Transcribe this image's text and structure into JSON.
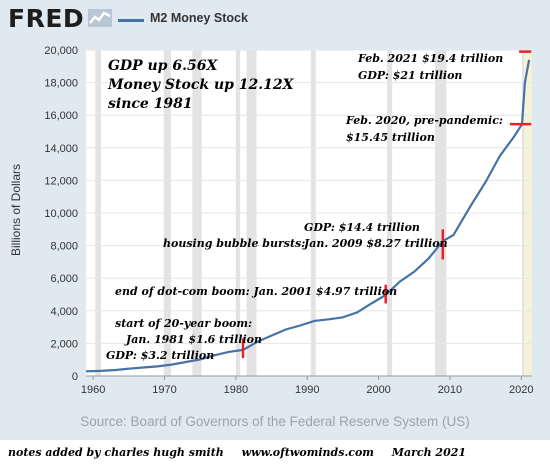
{
  "header": {
    "logo_text": "FRED",
    "logo_icon": "trend-graph-icon",
    "legend_label": "M2 Money Stock",
    "legend_color": "#4572a7"
  },
  "chart_data": {
    "type": "line",
    "ylabel": "Billions of Dollars",
    "ylim": [
      0,
      20000
    ],
    "yticks": [
      0,
      2000,
      4000,
      6000,
      8000,
      10000,
      12000,
      14000,
      16000,
      18000,
      20000
    ],
    "ytick_labels": [
      "0",
      "2,000",
      "4,000",
      "6,000",
      "8,000",
      "10,000",
      "12,000",
      "14,000",
      "16,000",
      "18,000",
      "20,000"
    ],
    "xlim": [
      1959,
      2021.5
    ],
    "xticks": [
      1960,
      1970,
      1980,
      1990,
      2000,
      2010,
      2020
    ],
    "xtick_labels": [
      "1960",
      "1970",
      "1980",
      "1990",
      "2000",
      "2010",
      "2020"
    ],
    "grid": true,
    "recession_shading": [
      [
        1960.3,
        1961.1
      ],
      [
        1969.9,
        1970.9
      ],
      [
        1973.9,
        1975.2
      ],
      [
        1980.0,
        1980.6
      ],
      [
        1981.5,
        1982.9
      ],
      [
        1990.5,
        1991.2
      ],
      [
        2001.2,
        2001.9
      ],
      [
        2007.9,
        2009.5
      ],
      [
        2020.1,
        2020.4
      ]
    ],
    "series": [
      {
        "name": "M2 Money Stock",
        "color": "#4572a7",
        "points": [
          [
            1959,
            290
          ],
          [
            1961,
            315
          ],
          [
            1963,
            365
          ],
          [
            1965,
            450
          ],
          [
            1967,
            520
          ],
          [
            1969,
            590
          ],
          [
            1971,
            700
          ],
          [
            1973,
            860
          ],
          [
            1975,
            1020
          ],
          [
            1977,
            1270
          ],
          [
            1979,
            1480
          ],
          [
            1981,
            1600
          ],
          [
            1983,
            2100
          ],
          [
            1985,
            2480
          ],
          [
            1987,
            2850
          ],
          [
            1989,
            3100
          ],
          [
            1991,
            3380
          ],
          [
            1993,
            3480
          ],
          [
            1995,
            3600
          ],
          [
            1997,
            3900
          ],
          [
            1999,
            4450
          ],
          [
            2001,
            4970
          ],
          [
            2003,
            5800
          ],
          [
            2005,
            6400
          ],
          [
            2007,
            7200
          ],
          [
            2009,
            8270
          ],
          [
            2010.5,
            8650
          ],
          [
            2011.5,
            9400
          ],
          [
            2013,
            10500
          ],
          [
            2015,
            11900
          ],
          [
            2017,
            13500
          ],
          [
            2019,
            14700
          ],
          [
            2020.1,
            15450
          ],
          [
            2020.5,
            18000
          ],
          [
            2021.1,
            19400
          ]
        ]
      }
    ],
    "markers": [
      {
        "x": 1981,
        "low": 1100,
        "high": 2300
      },
      {
        "x": 2001,
        "low": 4450,
        "high": 5600
      },
      {
        "x": 2009,
        "low": 7150,
        "high": 9000
      },
      {
        "x": 2018.4,
        "x2": 2021.4,
        "y": 15450
      },
      {
        "x": 2019.7,
        "x2": 2021.4,
        "y": 19900
      }
    ]
  },
  "annotations": {
    "headline_1": "GDP up 6.56X",
    "headline_2": "Money Stock up 12.12X",
    "headline_3": "since 1981",
    "feb2021": "Feb. 2021 $19.4 trillion",
    "gdp21": "GDP: $21 trillion",
    "feb2020_1": "Feb. 2020, pre-pandemic:",
    "feb2020_2": "$15.45 trillion",
    "gdp14": "GDP: $14.4 trillion",
    "housing": "housing bubble bursts:",
    "jan2009": "Jan. 2009  $8.27 trillion",
    "dotcom": "end of dot-com boom:  Jan. 2001  $4.97 trillion",
    "boom_1": "start of 20-year boom:",
    "boom_2": "Jan. 1981 $1.6 trillion",
    "gdp32": "GDP: $3.2 trillion",
    "marker_color": "#e8202a"
  },
  "footer": {
    "source": "Source: Board of Governors of the Federal Reserve System (US)",
    "credit_1": "notes added by charles hugh smith",
    "credit_2": "www.oftwominds.com",
    "credit_3": "March 2021"
  }
}
